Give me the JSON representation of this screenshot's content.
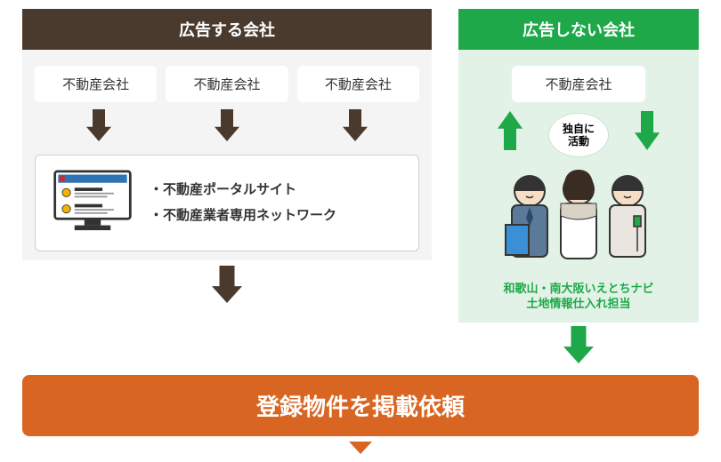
{
  "colors": {
    "left_header_bg": "#4a3a2e",
    "left_panel_bg": "#f4f4f4",
    "right_header_bg": "#1fa84a",
    "right_panel_bg": "#e2f2e6",
    "brown_arrow": "#4a3a2e",
    "green_arrow": "#1fa84a",
    "bottom_bar_bg": "#d96522",
    "bottom_triangle": "#d96522",
    "caption_color": "#1fa84a",
    "text_color": "#333333"
  },
  "left": {
    "header": "広告する会社",
    "chips": [
      "不動産会社",
      "不動産会社",
      "不動産会社"
    ],
    "bullets": [
      "・不動産ポータルサイト",
      "・不動産業者専用ネットワーク"
    ]
  },
  "right": {
    "header": "広告しない会社",
    "chip": "不動産会社",
    "bubble": "独自に\n活動",
    "caption_line1": "和歌山・南大阪いえとちナビ",
    "caption_line2": "土地情報仕入れ担当"
  },
  "bottom": {
    "label": "登録物件を掲載依頼"
  },
  "arrow": {
    "down_w": 28,
    "down_h": 36,
    "big_w": 34,
    "big_h": 42
  }
}
